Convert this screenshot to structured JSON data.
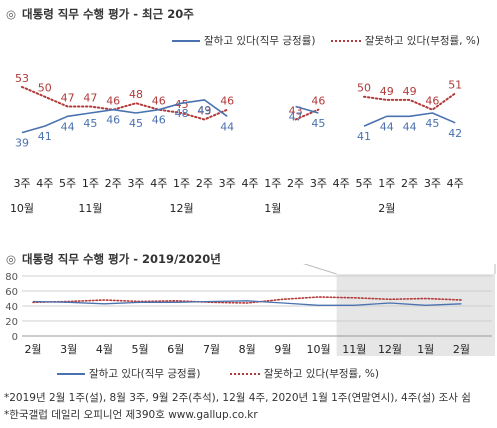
{
  "top_title": "대통령 직무 수행 평가 - 최근 20주",
  "bottom_title": "대통령 직무 수행 평가 - 2019/2020년",
  "legend": {
    "positive": "잘하고 있다(직무 긍정률)",
    "negative": "잘못하고 있다(부정률, %)"
  },
  "colors": {
    "positive": "#4a72b0",
    "negative": "#b23a3a",
    "shade": "#e6e6e6"
  },
  "footnotes": [
    "*2019년 2월 1주(설), 8월 3주, 9월 2주(추석), 12월 4주, 2020년 1월 1주(연말연시), 4주(설) 조사 쉼",
    "*한국갤럽 데일리 오피니언 제390호 www.gallup.co.kr"
  ],
  "chart_data": [
    {
      "type": "line",
      "title": "대통령 직무 수행 평가 - 최근 20주",
      "categories": [
        "3주",
        "4주",
        "5주",
        "1주",
        "2주",
        "3주",
        "4주",
        "1주",
        "2주",
        "3주",
        "4주",
        "1주",
        "2주",
        "3주",
        "4주",
        "5주",
        "1주",
        "2주",
        "3주",
        "4주"
      ],
      "month_labels": [
        {
          "index": 0,
          "text": "10월"
        },
        {
          "index": 3,
          "text": "11월"
        },
        {
          "index": 7,
          "text": "12월"
        },
        {
          "index": 11,
          "text": "1월"
        },
        {
          "index": 16,
          "text": "2월"
        }
      ],
      "series": [
        {
          "name": "잘하고 있다(직무 긍정률)",
          "values": [
            39,
            41,
            44,
            45,
            46,
            45,
            46,
            48,
            49,
            44,
            null,
            null,
            47,
            45,
            null,
            41,
            44,
            44,
            45,
            42
          ]
        },
        {
          "name": "잘못하고 있다(부정률, %)",
          "values": [
            53,
            50,
            47,
            47,
            46,
            48,
            46,
            45,
            43,
            46,
            null,
            null,
            43,
            46,
            null,
            50,
            49,
            49,
            46,
            51
          ]
        }
      ],
      "ylim": [
        30,
        60
      ],
      "grid": false
    },
    {
      "type": "line",
      "title": "대통령 직무 수행 평가 - 2019/2020년",
      "categories": [
        "2월",
        "3월",
        "4월",
        "5월",
        "6월",
        "7월",
        "8월",
        "9월",
        "10월",
        "11월",
        "12월",
        "1월",
        "2월"
      ],
      "yticks": [
        0,
        20,
        40,
        60,
        80
      ],
      "ylim": [
        0,
        80
      ],
      "grid": true,
      "shaded_range": [
        "10월",
        "2월"
      ],
      "series": [
        {
          "name": "잘하고 있다(직무 긍정률)",
          "values": [
            46,
            45,
            43,
            45,
            45,
            46,
            47,
            44,
            41,
            41,
            44,
            41,
            43
          ]
        },
        {
          "name": "잘못하고 있다(부정률, %)",
          "values": [
            45,
            46,
            48,
            46,
            47,
            45,
            44,
            49,
            52,
            51,
            49,
            50,
            48
          ]
        }
      ]
    }
  ]
}
